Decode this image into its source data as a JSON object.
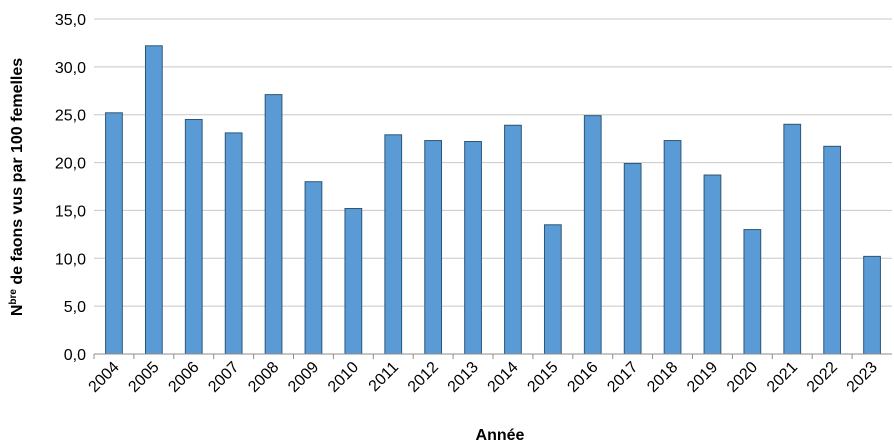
{
  "chart_data": {
    "type": "bar",
    "categories": [
      "2004",
      "2005",
      "2006",
      "2007",
      "2008",
      "2009",
      "2010",
      "2011",
      "2012",
      "2013",
      "2014",
      "2015",
      "2016",
      "2017",
      "2018",
      "2019",
      "2020",
      "2021",
      "2022",
      "2023"
    ],
    "values": [
      25.2,
      32.2,
      24.5,
      23.1,
      27.1,
      18.0,
      15.2,
      22.9,
      22.3,
      22.2,
      23.9,
      13.5,
      24.9,
      19.9,
      22.3,
      18.7,
      13.0,
      24.0,
      21.7,
      10.2
    ],
    "ylim": [
      0,
      35
    ],
    "yticks": [
      "0,0",
      "5,0",
      "10,0",
      "15,0",
      "20,0",
      "25,0",
      "30,0",
      "35,0"
    ],
    "xlabel": "Année",
    "ylabel_prefix": "N",
    "ylabel_superscript": "bre",
    "ylabel_suffix": " de faons vus par 100 femelles",
    "grid": true,
    "legend": "none",
    "bar_color": "#5B9BD5",
    "bar_stroke": "#2E5576",
    "grid_color": "#c8c8c8"
  }
}
